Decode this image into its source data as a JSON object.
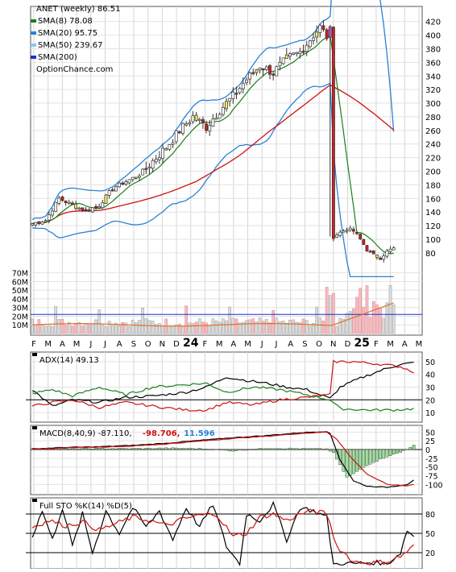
{
  "chart_data": [
    {
      "type": "candlestick",
      "legend": [
        {
          "label": "ANET (weekly) 86.51",
          "color": "#000000",
          "marker": false
        },
        {
          "label": "SMA(8) 78.08",
          "color": "#1a7f1a",
          "marker": true
        },
        {
          "label": "SMA(20) 95.75",
          "color": "#2a82d4",
          "marker": true
        },
        {
          "label": "SMA(50) 239.67",
          "color": "#8fc7ee",
          "marker": true
        },
        {
          "label": "SMA(200)",
          "color": "#1a2fd6",
          "marker": true
        },
        {
          "label": "OptionChance.com",
          "color": "#000000",
          "marker": false
        }
      ],
      "price_ticks": [
        80,
        100,
        120,
        140,
        160,
        180,
        200,
        220,
        240,
        260,
        280,
        300,
        320,
        340,
        360,
        380,
        400,
        420
      ],
      "price_range": [
        55,
        435
      ],
      "volume_ticks": [
        "10M",
        "20M",
        "30M",
        "40M",
        "50M",
        "60M",
        "70M"
      ],
      "volume_tick_values": [
        10,
        20,
        30,
        40,
        50,
        60,
        70
      ],
      "volume_range": [
        0,
        78
      ],
      "x_labels": [
        "F",
        "M",
        "A",
        "M",
        "J",
        "J",
        "A",
        "S",
        "O",
        "N",
        "D",
        "24",
        "F",
        "M",
        "A",
        "M",
        "J",
        "J",
        "A",
        "S",
        "O",
        "N",
        "D",
        "25",
        "F",
        "M",
        "A",
        "M"
      ],
      "bold_labels": [
        "24",
        "25"
      ],
      "weeks": 117,
      "volume_avg_line": 22,
      "close_anchors": [
        [
          0,
          123
        ],
        [
          4,
          128
        ],
        [
          8,
          160
        ],
        [
          12,
          150
        ],
        [
          16,
          142
        ],
        [
          20,
          150
        ],
        [
          24,
          175
        ],
        [
          28,
          185
        ],
        [
          32,
          195
        ],
        [
          36,
          215
        ],
        [
          40,
          235
        ],
        [
          44,
          260
        ],
        [
          48,
          280
        ],
        [
          52,
          265
        ],
        [
          56,
          290
        ],
        [
          60,
          310
        ],
        [
          64,
          335
        ],
        [
          68,
          355
        ],
        [
          72,
          345
        ],
        [
          76,
          365
        ],
        [
          80,
          375
        ],
        [
          84,
          400
        ],
        [
          86,
          412
        ],
        [
          88,
          398
        ],
        [
          89,
          406
        ],
        [
          90,
          104
        ],
        [
          92,
          110
        ],
        [
          94,
          115
        ],
        [
          96,
          112
        ],
        [
          98,
          100
        ],
        [
          100,
          85
        ],
        [
          102,
          76
        ],
        [
          104,
          73
        ],
        [
          106,
          82
        ],
        [
          108,
          86.51
        ]
      ]
    },
    {
      "type": "line",
      "title": "ADX(14) 49.13",
      "yticks": [
        10,
        20,
        30,
        40,
        50
      ],
      "yrange": [
        5,
        55
      ],
      "hlines": [
        20
      ],
      "series": [
        {
          "color": "#000000",
          "anchors": [
            [
              0,
              28
            ],
            [
              6,
              15
            ],
            [
              12,
              20
            ],
            [
              20,
              18
            ],
            [
              28,
              22
            ],
            [
              36,
              23
            ],
            [
              46,
              26
            ],
            [
              52,
              30
            ],
            [
              58,
              38
            ],
            [
              62,
              36
            ],
            [
              70,
              33
            ],
            [
              76,
              30
            ],
            [
              82,
              28
            ],
            [
              89,
              21
            ],
            [
              92,
              30
            ],
            [
              98,
              37
            ],
            [
              104,
              43
            ],
            [
              110,
              48
            ],
            [
              114,
              49
            ]
          ]
        },
        {
          "color": "#1a7f1a",
          "anchors": [
            [
              0,
              25
            ],
            [
              6,
              28
            ],
            [
              12,
              23
            ],
            [
              20,
              30
            ],
            [
              28,
              24
            ],
            [
              36,
              30
            ],
            [
              46,
              32
            ],
            [
              52,
              33
            ],
            [
              58,
              26
            ],
            [
              66,
              30
            ],
            [
              74,
              28
            ],
            [
              82,
              24
            ],
            [
              89,
              20
            ],
            [
              92,
              13
            ],
            [
              100,
              12
            ],
            [
              108,
              12
            ],
            [
              114,
              13
            ]
          ]
        },
        {
          "color": "#cc1111",
          "anchors": [
            [
              0,
              15
            ],
            [
              6,
              18
            ],
            [
              12,
              20
            ],
            [
              20,
              14
            ],
            [
              28,
              18
            ],
            [
              36,
              15
            ],
            [
              46,
              12
            ],
            [
              52,
              12
            ],
            [
              58,
              18
            ],
            [
              66,
              16
            ],
            [
              74,
              20
            ],
            [
              82,
              22
            ],
            [
              89,
              24
            ],
            [
              90,
              50
            ],
            [
              96,
              50
            ],
            [
              104,
              48
            ],
            [
              110,
              46
            ],
            [
              114,
              42
            ]
          ]
        }
      ]
    },
    {
      "type": "line",
      "title": "MACD(8,40,9) -87.110, -98.706, 11.596",
      "title_parts": [
        "MACD(8,40,9) -87.110,",
        "-98.706,",
        "11.596"
      ],
      "title_colors": [
        "#000000",
        "#cc1111",
        "#2a82d4"
      ],
      "yticks": [
        -100,
        -75,
        -50,
        -25,
        0,
        25,
        50
      ],
      "yrange": [
        -120,
        60
      ],
      "series": [
        {
          "color": "#000000",
          "anchors": [
            [
              0,
              2
            ],
            [
              10,
              6
            ],
            [
              20,
              8
            ],
            [
              30,
              12
            ],
            [
              40,
              18
            ],
            [
              50,
              26
            ],
            [
              60,
              34
            ],
            [
              70,
              40
            ],
            [
              80,
              48
            ],
            [
              88,
              52
            ],
            [
              89,
              45
            ],
            [
              92,
              -30
            ],
            [
              96,
              -90
            ],
            [
              100,
              -105
            ],
            [
              106,
              -108
            ],
            [
              112,
              -100
            ],
            [
              114,
              -87
            ]
          ]
        },
        {
          "color": "#cc1111",
          "anchors": [
            [
              0,
              0
            ],
            [
              10,
              5
            ],
            [
              20,
              7
            ],
            [
              30,
              10
            ],
            [
              40,
              16
            ],
            [
              50,
              24
            ],
            [
              60,
              32
            ],
            [
              70,
              38
            ],
            [
              80,
              46
            ],
            [
              88,
              50
            ],
            [
              91,
              30
            ],
            [
              95,
              -20
            ],
            [
              100,
              -70
            ],
            [
              106,
              -100
            ],
            [
              112,
              -104
            ],
            [
              114,
              -99
            ]
          ]
        }
      ],
      "histogram_anchors": [
        [
          0,
          2
        ],
        [
          10,
          2
        ],
        [
          20,
          3
        ],
        [
          30,
          3
        ],
        [
          40,
          4
        ],
        [
          50,
          3
        ],
        [
          60,
          -4
        ],
        [
          70,
          4
        ],
        [
          80,
          3
        ],
        [
          88,
          2
        ],
        [
          90,
          -10
        ],
        [
          92,
          -45
        ],
        [
          94,
          -80
        ],
        [
          96,
          -70
        ],
        [
          100,
          -45
        ],
        [
          106,
          -20
        ],
        [
          110,
          -8
        ],
        [
          114,
          12
        ]
      ]
    },
    {
      "type": "line",
      "title": "Full STO %K(14) %D(5)",
      "yticks": [
        20,
        50,
        80
      ],
      "yrange": [
        0,
        100
      ],
      "hlines": [
        20,
        50,
        80
      ],
      "series": [
        {
          "color": "#000000",
          "anchors": [
            [
              0,
              45
            ],
            [
              3,
              85
            ],
            [
              6,
              40
            ],
            [
              9,
              90
            ],
            [
              12,
              30
            ],
            [
              15,
              80
            ],
            [
              18,
              20
            ],
            [
              22,
              85
            ],
            [
              26,
              50
            ],
            [
              30,
              90
            ],
            [
              34,
              60
            ],
            [
              38,
              85
            ],
            [
              42,
              40
            ],
            [
              46,
              90
            ],
            [
              50,
              60
            ],
            [
              54,
              95
            ],
            [
              58,
              30
            ],
            [
              62,
              2
            ],
            [
              64,
              80
            ],
            [
              68,
              70
            ],
            [
              72,
              95
            ],
            [
              76,
              40
            ],
            [
              80,
              90
            ],
            [
              84,
              85
            ],
            [
              88,
              75
            ],
            [
              90,
              2
            ],
            [
              96,
              3
            ],
            [
              102,
              5
            ],
            [
              106,
              2
            ],
            [
              110,
              20
            ],
            [
              112,
              55
            ],
            [
              114,
              45
            ]
          ]
        },
        {
          "color": "#cc1111",
          "anchors": [
            [
              0,
              60
            ],
            [
              5,
              70
            ],
            [
              10,
              62
            ],
            [
              15,
              68
            ],
            [
              20,
              55
            ],
            [
              25,
              65
            ],
            [
              30,
              75
            ],
            [
              35,
              70
            ],
            [
              40,
              62
            ],
            [
              45,
              72
            ],
            [
              50,
              78
            ],
            [
              55,
              80
            ],
            [
              60,
              45
            ],
            [
              64,
              50
            ],
            [
              68,
              75
            ],
            [
              72,
              80
            ],
            [
              76,
              70
            ],
            [
              80,
              80
            ],
            [
              84,
              85
            ],
            [
              88,
              80
            ],
            [
              91,
              30
            ],
            [
              96,
              6
            ],
            [
              102,
              4
            ],
            [
              106,
              6
            ],
            [
              110,
              14
            ],
            [
              114,
              30
            ]
          ]
        }
      ]
    }
  ]
}
